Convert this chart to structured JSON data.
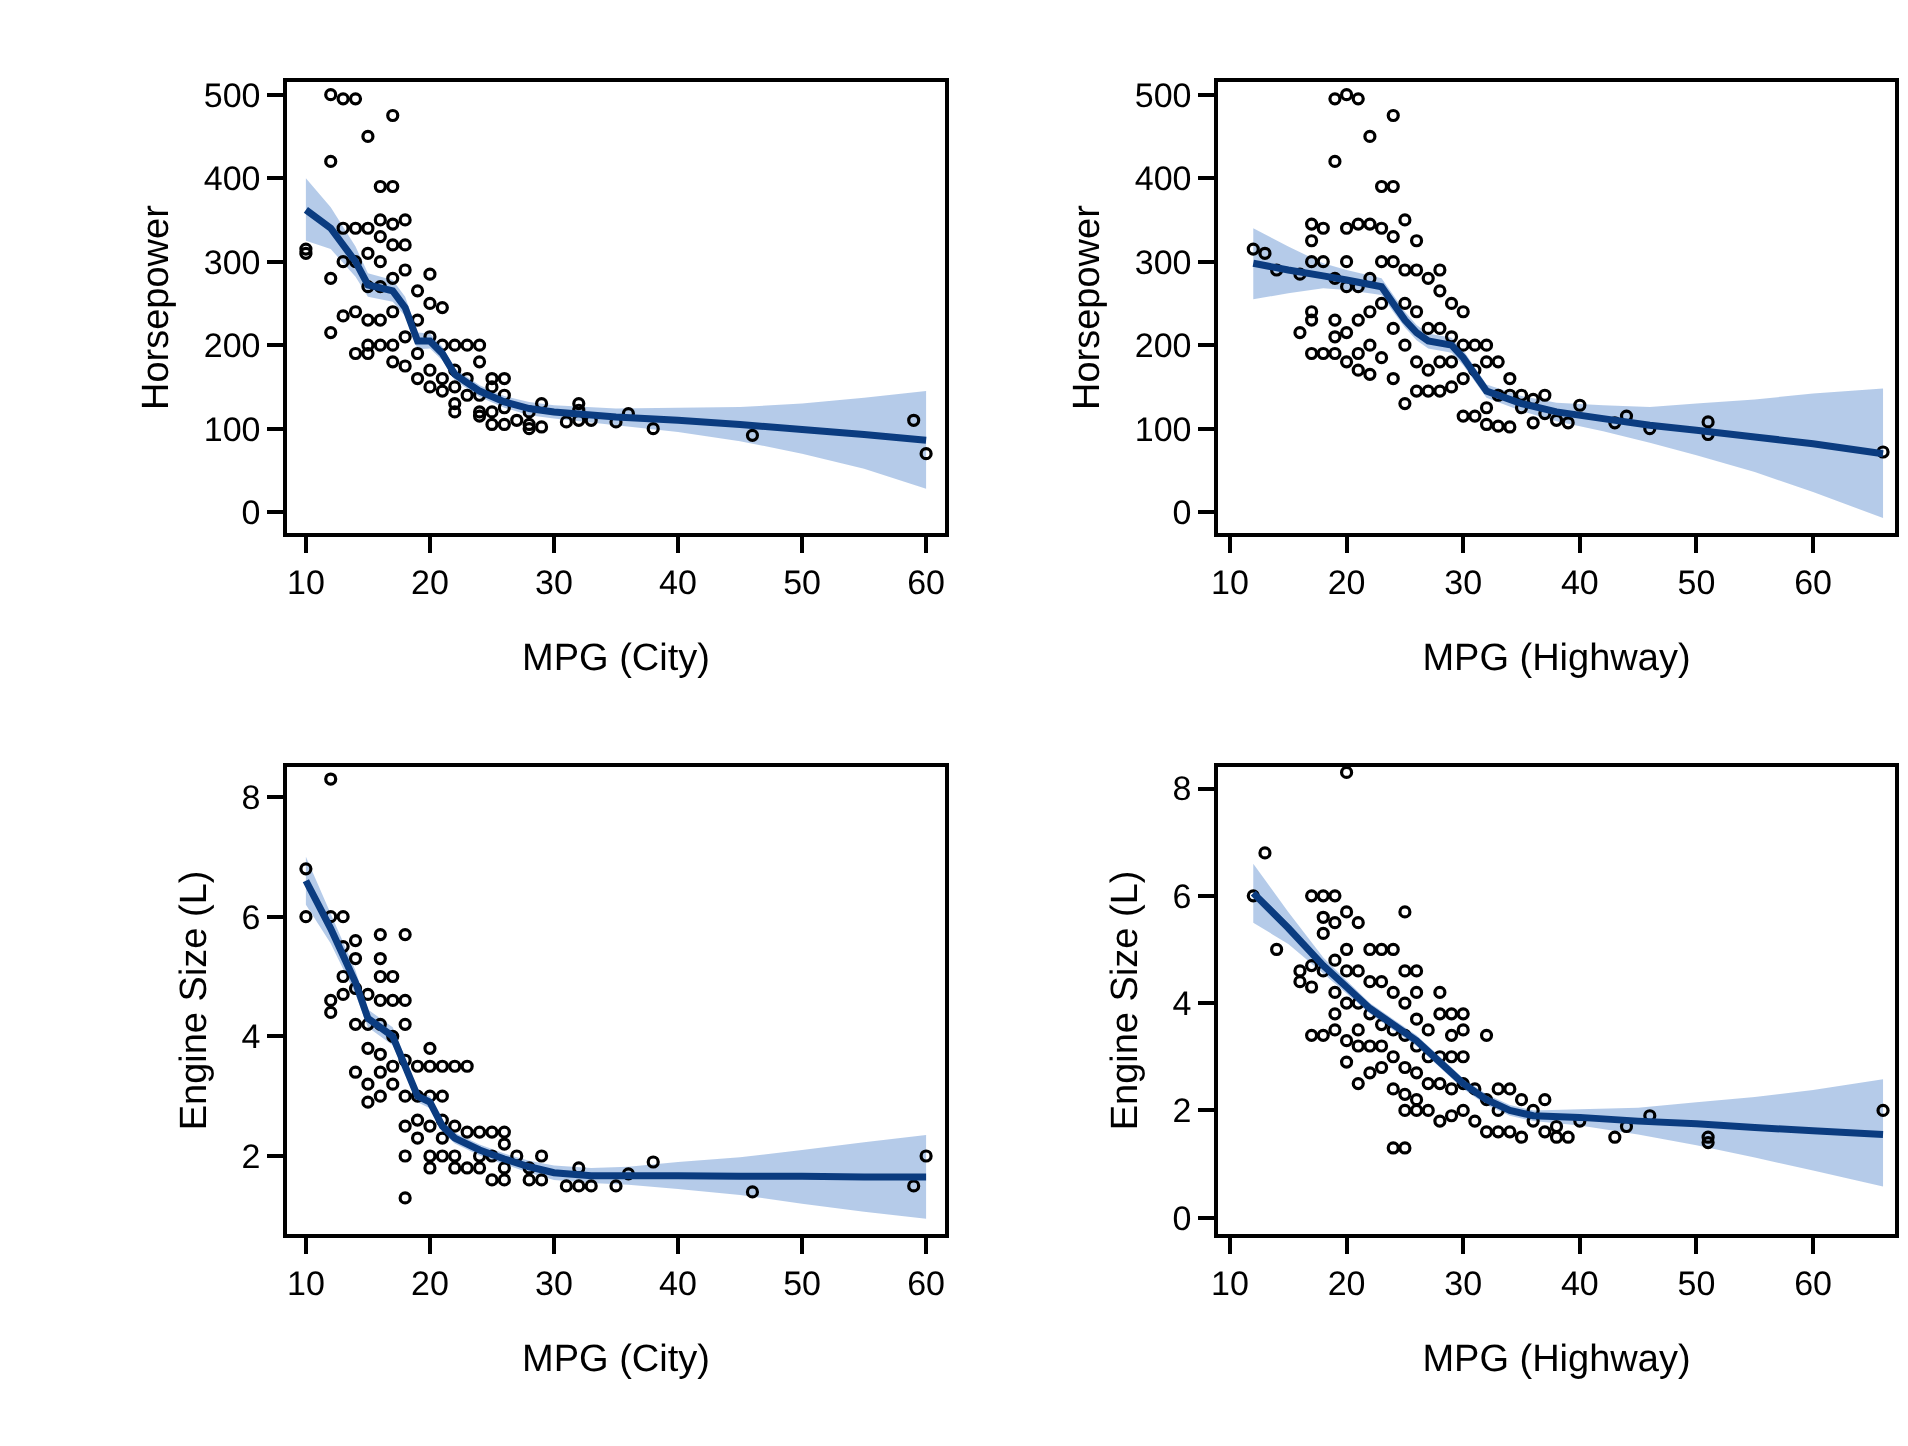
{
  "chart_data": [
    {
      "type": "scatter",
      "xlabel": "MPG (City)",
      "ylabel": "Horsepower",
      "xlim": [
        8.5,
        61.5
      ],
      "ylim": [
        -25,
        515
      ],
      "xticks": [
        10,
        20,
        30,
        40,
        50,
        60
      ],
      "yticks": [
        0,
        100,
        200,
        300,
        400,
        500
      ],
      "line_style": "solid",
      "series": [
        {
          "marker": "circle",
          "color": "#000000",
          "x": [
            10,
            10,
            12,
            13,
            14,
            12,
            15,
            17,
            16,
            17,
            12,
            12,
            13,
            14,
            13,
            14,
            15,
            13,
            14,
            15,
            16,
            16,
            17,
            18,
            16,
            17,
            18,
            16,
            17,
            18,
            15,
            15,
            16,
            17,
            15,
            16,
            14,
            15,
            17,
            18,
            17,
            18,
            19,
            19,
            19,
            19,
            20,
            20,
            20,
            20,
            20,
            21,
            21,
            21,
            21,
            22,
            22,
            22,
            22,
            22,
            23,
            23,
            23,
            24,
            24,
            24,
            24,
            24,
            25,
            25,
            25,
            25,
            26,
            26,
            26,
            26,
            27,
            28,
            28,
            28,
            29,
            29,
            31,
            32,
            32,
            32,
            33,
            35,
            36,
            38,
            46,
            59,
            60
          ],
          "values": [
            310,
            315,
            500,
            495,
            495,
            420,
            450,
            475,
            390,
            390,
            280,
            215,
            235,
            240,
            340,
            340,
            340,
            300,
            300,
            310,
            350,
            330,
            345,
            350,
            300,
            320,
            320,
            270,
            280,
            290,
            270,
            230,
            230,
            240,
            200,
            200,
            190,
            190,
            200,
            210,
            180,
            175,
            265,
            230,
            190,
            160,
            285,
            250,
            210,
            170,
            150,
            245,
            200,
            160,
            145,
            200,
            170,
            150,
            130,
            120,
            200,
            160,
            140,
            200,
            180,
            140,
            120,
            115,
            160,
            150,
            120,
            105,
            160,
            140,
            125,
            105,
            110,
            120,
            105,
            100,
            130,
            102,
            108,
            130,
            122,
            110,
            110,
            108,
            118,
            100,
            92,
            110,
            70
          ]
        },
        {
          "type": "line",
          "color": "#0b3c80",
          "x": [
            10,
            12,
            14,
            15,
            17,
            18,
            19,
            20,
            21,
            22,
            24,
            26,
            28,
            30,
            35,
            40,
            45,
            50,
            55,
            60
          ],
          "values": [
            362,
            340,
            300,
            272,
            265,
            245,
            205,
            205,
            190,
            165,
            145,
            132,
            124,
            120,
            114,
            110,
            105,
            99,
            93,
            86
          ],
          "lower": [
            325,
            315,
            282,
            258,
            252,
            235,
            195,
            196,
            182,
            158,
            138,
            125,
            116,
            112,
            104,
            96,
            85,
            70,
            52,
            28
          ],
          "upper": [
            400,
            365,
            318,
            286,
            278,
            258,
            215,
            214,
            198,
            172,
            152,
            139,
            132,
            128,
            124,
            125,
            126,
            130,
            137,
            145
          ]
        }
      ]
    },
    {
      "type": "scatter",
      "xlabel": "MPG (Highway)",
      "ylabel": "Horsepower",
      "xlim": [
        9,
        67
      ],
      "ylim": [
        -25,
        515
      ],
      "xticks": [
        10,
        20,
        30,
        40,
        50,
        60
      ],
      "yticks": [
        0,
        100,
        200,
        300,
        400,
        500
      ],
      "line_style": "solid",
      "series": [
        {
          "marker": "circle",
          "color": "#000000",
          "x": [
            12,
            13,
            14,
            16,
            16,
            17,
            17,
            17,
            17,
            17,
            17,
            18,
            18,
            18,
            19,
            19,
            19,
            19,
            19,
            19,
            20,
            20,
            20,
            20,
            20,
            20,
            21,
            21,
            21,
            21,
            21,
            21,
            22,
            22,
            22,
            22,
            22,
            22,
            23,
            23,
            23,
            23,
            23,
            24,
            24,
            24,
            24,
            24,
            24,
            25,
            25,
            25,
            25,
            25,
            26,
            26,
            26,
            26,
            26,
            27,
            27,
            27,
            27,
            28,
            28,
            28,
            28,
            28,
            29,
            29,
            29,
            29,
            30,
            30,
            30,
            30,
            31,
            31,
            31,
            32,
            32,
            32,
            32,
            33,
            33,
            33,
            34,
            34,
            34,
            35,
            35,
            36,
            36,
            37,
            37,
            38,
            39,
            40,
            43,
            44,
            46,
            51,
            51,
            66
          ],
          "values": [
            315,
            310,
            290,
            285,
            215,
            345,
            325,
            300,
            240,
            230,
            190,
            340,
            300,
            190,
            495,
            420,
            280,
            230,
            210,
            190,
            500,
            340,
            300,
            270,
            215,
            180,
            495,
            345,
            270,
            230,
            190,
            170,
            450,
            345,
            280,
            240,
            200,
            165,
            390,
            340,
            300,
            250,
            185,
            390,
            475,
            330,
            300,
            220,
            160,
            350,
            290,
            250,
            200,
            130,
            325,
            290,
            240,
            180,
            145,
            280,
            220,
            170,
            145,
            290,
            265,
            220,
            180,
            145,
            250,
            210,
            180,
            150,
            240,
            200,
            160,
            115,
            200,
            170,
            115,
            200,
            180,
            125,
            105,
            180,
            140,
            103,
            160,
            140,
            102,
            140,
            125,
            135,
            107,
            140,
            118,
            110,
            107,
            128,
            107,
            115,
            100,
            108,
            93,
            72
          ]
        },
        {
          "type": "line",
          "color": "#0b3c80",
          "x": [
            12,
            15,
            18,
            20,
            23,
            24,
            25,
            26,
            27,
            29,
            30,
            32,
            35,
            38,
            42,
            46,
            50,
            55,
            60,
            66
          ],
          "values": [
            298,
            290,
            283,
            278,
            270,
            250,
            230,
            215,
            205,
            200,
            185,
            145,
            130,
            120,
            112,
            104,
            98,
            90,
            82,
            70
          ],
          "lower": [
            255,
            262,
            268,
            266,
            260,
            240,
            221,
            206,
            196,
            191,
            176,
            137,
            121,
            109,
            97,
            83,
            68,
            48,
            24,
            -7
          ],
          "upper": [
            340,
            318,
            298,
            290,
            280,
            260,
            240,
            224,
            214,
            209,
            194,
            153,
            139,
            131,
            128,
            126,
            130,
            135,
            142,
            148
          ]
        }
      ]
    },
    {
      "type": "scatter",
      "xlabel": "MPG (City)",
      "ylabel": "Engine Size (L)",
      "xlim": [
        8.5,
        61.5
      ],
      "ylim": [
        0.7,
        8.5
      ],
      "xticks": [
        10,
        20,
        30,
        40,
        50,
        60
      ],
      "yticks": [
        2,
        4,
        6,
        8
      ],
      "line_style": "solid",
      "series": [
        {
          "marker": "circle",
          "color": "#000000",
          "x": [
            10,
            10,
            12,
            12,
            12,
            12,
            13,
            13,
            13,
            13,
            14,
            14,
            14,
            14,
            14,
            15,
            15,
            15,
            15,
            15,
            16,
            16,
            16,
            16,
            16,
            16,
            16,
            16,
            17,
            17,
            17,
            17,
            17,
            18,
            18,
            18,
            18,
            18,
            18,
            18,
            18,
            19,
            19,
            19,
            19,
            20,
            20,
            20,
            20,
            20,
            20,
            21,
            21,
            21,
            21,
            21,
            22,
            22,
            22,
            22,
            23,
            23,
            23,
            24,
            24,
            24,
            25,
            25,
            25,
            26,
            26,
            26,
            26,
            27,
            28,
            28,
            29,
            29,
            31,
            32,
            32,
            33,
            35,
            36,
            38,
            46,
            59,
            60
          ],
          "values": [
            6.8,
            6.0,
            8.3,
            6.0,
            4.6,
            4.4,
            6.0,
            5.5,
            5.0,
            4.7,
            5.6,
            5.3,
            4.8,
            4.2,
            3.4,
            4.7,
            4.2,
            3.8,
            3.2,
            2.9,
            5.7,
            5.3,
            5.0,
            4.6,
            4.2,
            3.7,
            3.4,
            3.0,
            5.0,
            4.6,
            4.0,
            3.5,
            3.2,
            5.7,
            4.6,
            4.2,
            3.6,
            3.0,
            2.5,
            2.0,
            1.3,
            3.5,
            3.0,
            2.6,
            2.3,
            3.8,
            3.5,
            3.0,
            2.5,
            2.0,
            1.8,
            3.5,
            3.0,
            2.6,
            2.3,
            2.0,
            3.5,
            2.5,
            2.0,
            1.8,
            3.5,
            2.4,
            1.8,
            2.4,
            2.0,
            1.8,
            2.4,
            2.0,
            1.6,
            2.4,
            2.2,
            1.8,
            1.6,
            2.0,
            1.8,
            1.6,
            2.0,
            1.6,
            1.5,
            1.8,
            1.5,
            1.5,
            1.5,
            1.7,
            1.9,
            1.4,
            1.5,
            2.0
          ]
        },
        {
          "type": "line",
          "color": "#0b3c80",
          "x": [
            10,
            12,
            14,
            15,
            16,
            17,
            18,
            19,
            20,
            21,
            22,
            24,
            26,
            28,
            30,
            33,
            36,
            40,
            45,
            50,
            55,
            60
          ],
          "values": [
            6.6,
            5.8,
            4.9,
            4.3,
            4.15,
            4.0,
            3.5,
            3.0,
            2.9,
            2.5,
            2.3,
            2.1,
            1.95,
            1.82,
            1.72,
            1.67,
            1.67,
            1.67,
            1.66,
            1.66,
            1.65,
            1.65
          ],
          "lower": [
            6.2,
            5.55,
            4.7,
            4.15,
            4.0,
            3.85,
            3.38,
            2.9,
            2.8,
            2.4,
            2.21,
            2.01,
            1.86,
            1.72,
            1.6,
            1.55,
            1.52,
            1.45,
            1.35,
            1.2,
            1.07,
            0.95
          ],
          "upper": [
            7.0,
            6.05,
            5.1,
            4.45,
            4.3,
            4.15,
            3.62,
            3.1,
            3.0,
            2.6,
            2.39,
            2.19,
            2.04,
            1.92,
            1.84,
            1.8,
            1.82,
            1.9,
            1.98,
            2.1,
            2.23,
            2.35
          ]
        }
      ]
    },
    {
      "type": "scatter",
      "xlabel": "MPG (Highway)",
      "ylabel": "Engine Size (L)",
      "xlim": [
        9,
        67
      ],
      "ylim": [
        -0.3,
        8.4
      ],
      "xticks": [
        10,
        20,
        30,
        40,
        50,
        60
      ],
      "yticks": [
        0,
        2,
        4,
        6,
        8
      ],
      "line_style": "solid",
      "series": [
        {
          "marker": "circle",
          "color": "#000000",
          "x": [
            12,
            13,
            14,
            16,
            16,
            17,
            17,
            17,
            17,
            18,
            18,
            18,
            18,
            18,
            19,
            19,
            19,
            19,
            19,
            19,
            20,
            20,
            20,
            20,
            20,
            20,
            20,
            21,
            21,
            21,
            21,
            21,
            21,
            22,
            22,
            22,
            22,
            22,
            23,
            23,
            23,
            23,
            23,
            24,
            24,
            24,
            24,
            24,
            24,
            25,
            25,
            25,
            25,
            25,
            25,
            25,
            25,
            26,
            26,
            26,
            26,
            26,
            26,
            26,
            27,
            27,
            27,
            27,
            28,
            28,
            28,
            28,
            28,
            29,
            29,
            29,
            29,
            29,
            30,
            30,
            30,
            30,
            30,
            31,
            31,
            32,
            32,
            32,
            33,
            33,
            33,
            34,
            34,
            35,
            35,
            36,
            36,
            37,
            37,
            38,
            38,
            39,
            40,
            43,
            44,
            46,
            51,
            51,
            66
          ],
          "values": [
            6.0,
            6.8,
            5.0,
            4.6,
            4.4,
            6.0,
            4.7,
            4.3,
            3.4,
            6.0,
            5.6,
            5.3,
            4.6,
            3.4,
            6.0,
            5.5,
            4.8,
            4.2,
            3.8,
            3.5,
            8.3,
            5.7,
            5.0,
            4.6,
            4.0,
            3.3,
            2.9,
            5.5,
            4.6,
            4.0,
            3.5,
            3.2,
            2.5,
            5.0,
            4.4,
            3.8,
            3.2,
            2.7,
            5.0,
            4.4,
            3.6,
            3.2,
            2.8,
            5.0,
            4.2,
            3.5,
            3.0,
            2.4,
            1.3,
            5.7,
            4.6,
            4.0,
            3.4,
            2.8,
            2.3,
            2.0,
            1.3,
            4.6,
            4.2,
            3.7,
            3.2,
            2.7,
            2.2,
            2.0,
            3.5,
            3.0,
            2.5,
            2.0,
            4.2,
            3.8,
            3.0,
            2.5,
            1.8,
            3.8,
            3.4,
            3.0,
            2.4,
            1.9,
            3.8,
            3.5,
            3.0,
            2.5,
            2.0,
            2.4,
            1.8,
            3.4,
            2.2,
            1.6,
            2.4,
            2.0,
            1.6,
            2.4,
            1.6,
            2.2,
            1.5,
            2.0,
            1.8,
            2.2,
            1.6,
            1.7,
            1.5,
            1.5,
            1.8,
            1.5,
            1.7,
            1.9,
            1.5,
            1.4,
            2.0
          ]
        },
        {
          "type": "line",
          "color": "#0b3c80",
          "x": [
            12,
            15,
            18,
            20,
            22,
            24,
            26,
            28,
            30,
            32,
            34,
            36,
            40,
            45,
            50,
            55,
            60,
            66
          ],
          "values": [
            6.05,
            5.4,
            4.7,
            4.3,
            3.9,
            3.6,
            3.3,
            2.9,
            2.5,
            2.2,
            2.0,
            1.9,
            1.87,
            1.8,
            1.75,
            1.68,
            1.62,
            1.55
          ],
          "lower": [
            5.5,
            5.1,
            4.55,
            4.18,
            3.8,
            3.5,
            3.2,
            2.8,
            2.4,
            2.1,
            1.9,
            1.8,
            1.72,
            1.55,
            1.35,
            1.12,
            0.88,
            0.58
          ],
          "upper": [
            6.6,
            5.7,
            4.85,
            4.42,
            4.0,
            3.7,
            3.4,
            3.0,
            2.6,
            2.3,
            2.1,
            2.0,
            2.02,
            2.05,
            2.15,
            2.25,
            2.38,
            2.58
          ]
        }
      ]
    }
  ]
}
